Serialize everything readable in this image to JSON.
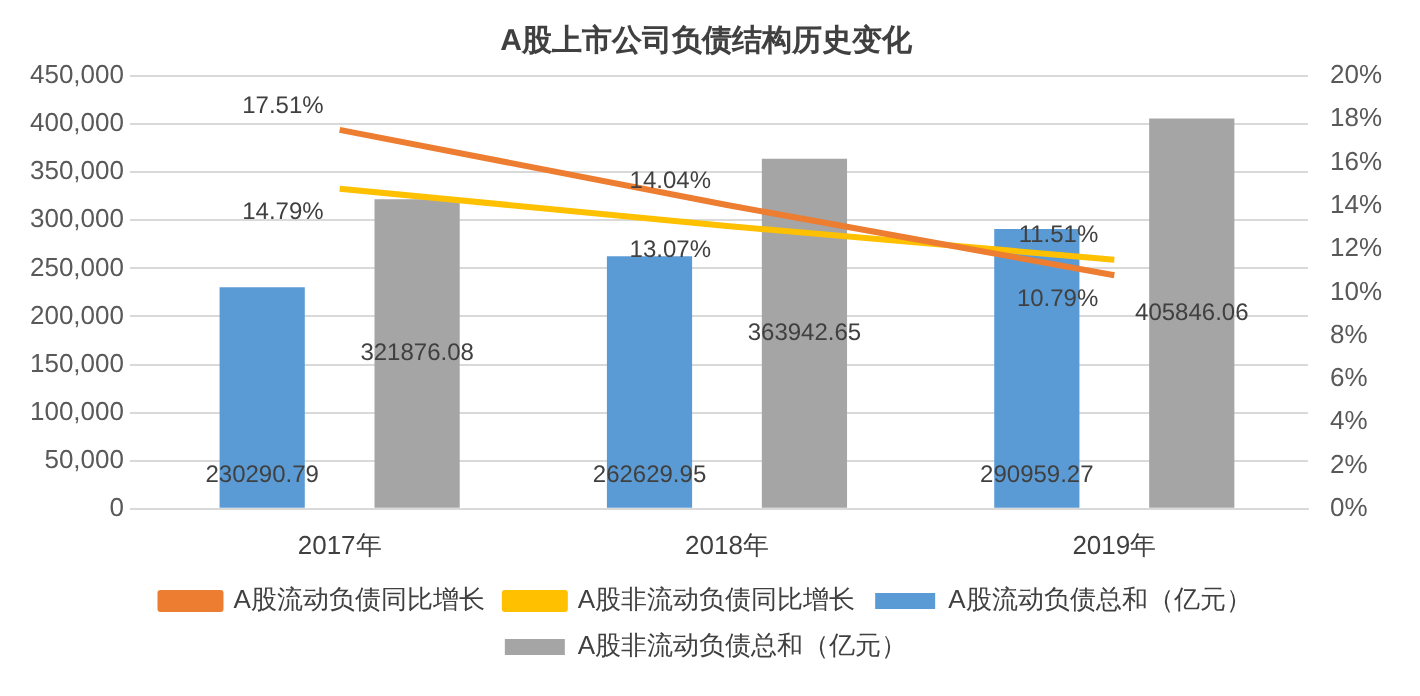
{
  "chart_data": {
    "type": "bar",
    "title": "A股上市公司负债结构历史变化",
    "categories": [
      "2017年",
      "2018年",
      "2019年"
    ],
    "series": [
      {
        "name": "A股流动负债总和（亿元）",
        "color": "#5b9bd5",
        "values": [
          230290.79,
          262629.95,
          290959.27
        ],
        "value_labels": [
          "230290.79",
          "262629.95",
          "290959.27"
        ]
      },
      {
        "name": "A股非流动负债总和（亿元）",
        "color": "#a5a5a5",
        "values": [
          321876.08,
          363942.65,
          405846.06
        ],
        "value_labels": [
          "321876.08",
          "363942.65",
          "405846.06"
        ]
      },
      {
        "name": "A股流动负债同比增长",
        "type": "line",
        "axis": "y2",
        "color": "#ed7d31",
        "values": [
          17.51,
          14.04,
          10.79
        ],
        "value_labels": [
          "17.51%",
          "14.04%",
          "10.79%"
        ]
      },
      {
        "name": "A股非流动负债同比增长",
        "type": "line",
        "axis": "y2",
        "color": "#ffc000",
        "values": [
          14.79,
          13.07,
          11.51
        ],
        "value_labels": [
          "14.79%",
          "13.07%",
          "11.51%"
        ]
      }
    ],
    "ylim": [
      0,
      450000
    ],
    "yticks": [
      {
        "value": 0,
        "label": "0"
      },
      {
        "value": 50000,
        "label": "50,000"
      },
      {
        "value": 100000,
        "label": "100,000"
      },
      {
        "value": 150000,
        "label": "150,000"
      },
      {
        "value": 200000,
        "label": "200,000"
      },
      {
        "value": 250000,
        "label": "250,000"
      },
      {
        "value": 300000,
        "label": "300,000"
      },
      {
        "value": 350000,
        "label": "350,000"
      },
      {
        "value": 400000,
        "label": "400,000"
      },
      {
        "value": 450000,
        "label": "450,000"
      }
    ],
    "y2lim": [
      0,
      20
    ],
    "y2ticks": [
      {
        "value": 0,
        "label": "0%"
      },
      {
        "value": 2,
        "label": "2%"
      },
      {
        "value": 4,
        "label": "4%"
      },
      {
        "value": 6,
        "label": "6%"
      },
      {
        "value": 8,
        "label": "8%"
      },
      {
        "value": 10,
        "label": "10%"
      },
      {
        "value": 12,
        "label": "12%"
      },
      {
        "value": 14,
        "label": "14%"
      },
      {
        "value": 16,
        "label": "16%"
      },
      {
        "value": 18,
        "label": "18%"
      },
      {
        "value": 20,
        "label": "20%"
      }
    ],
    "grid": "y",
    "legend": "bottom",
    "marker": "none",
    "line_style": "solid"
  }
}
